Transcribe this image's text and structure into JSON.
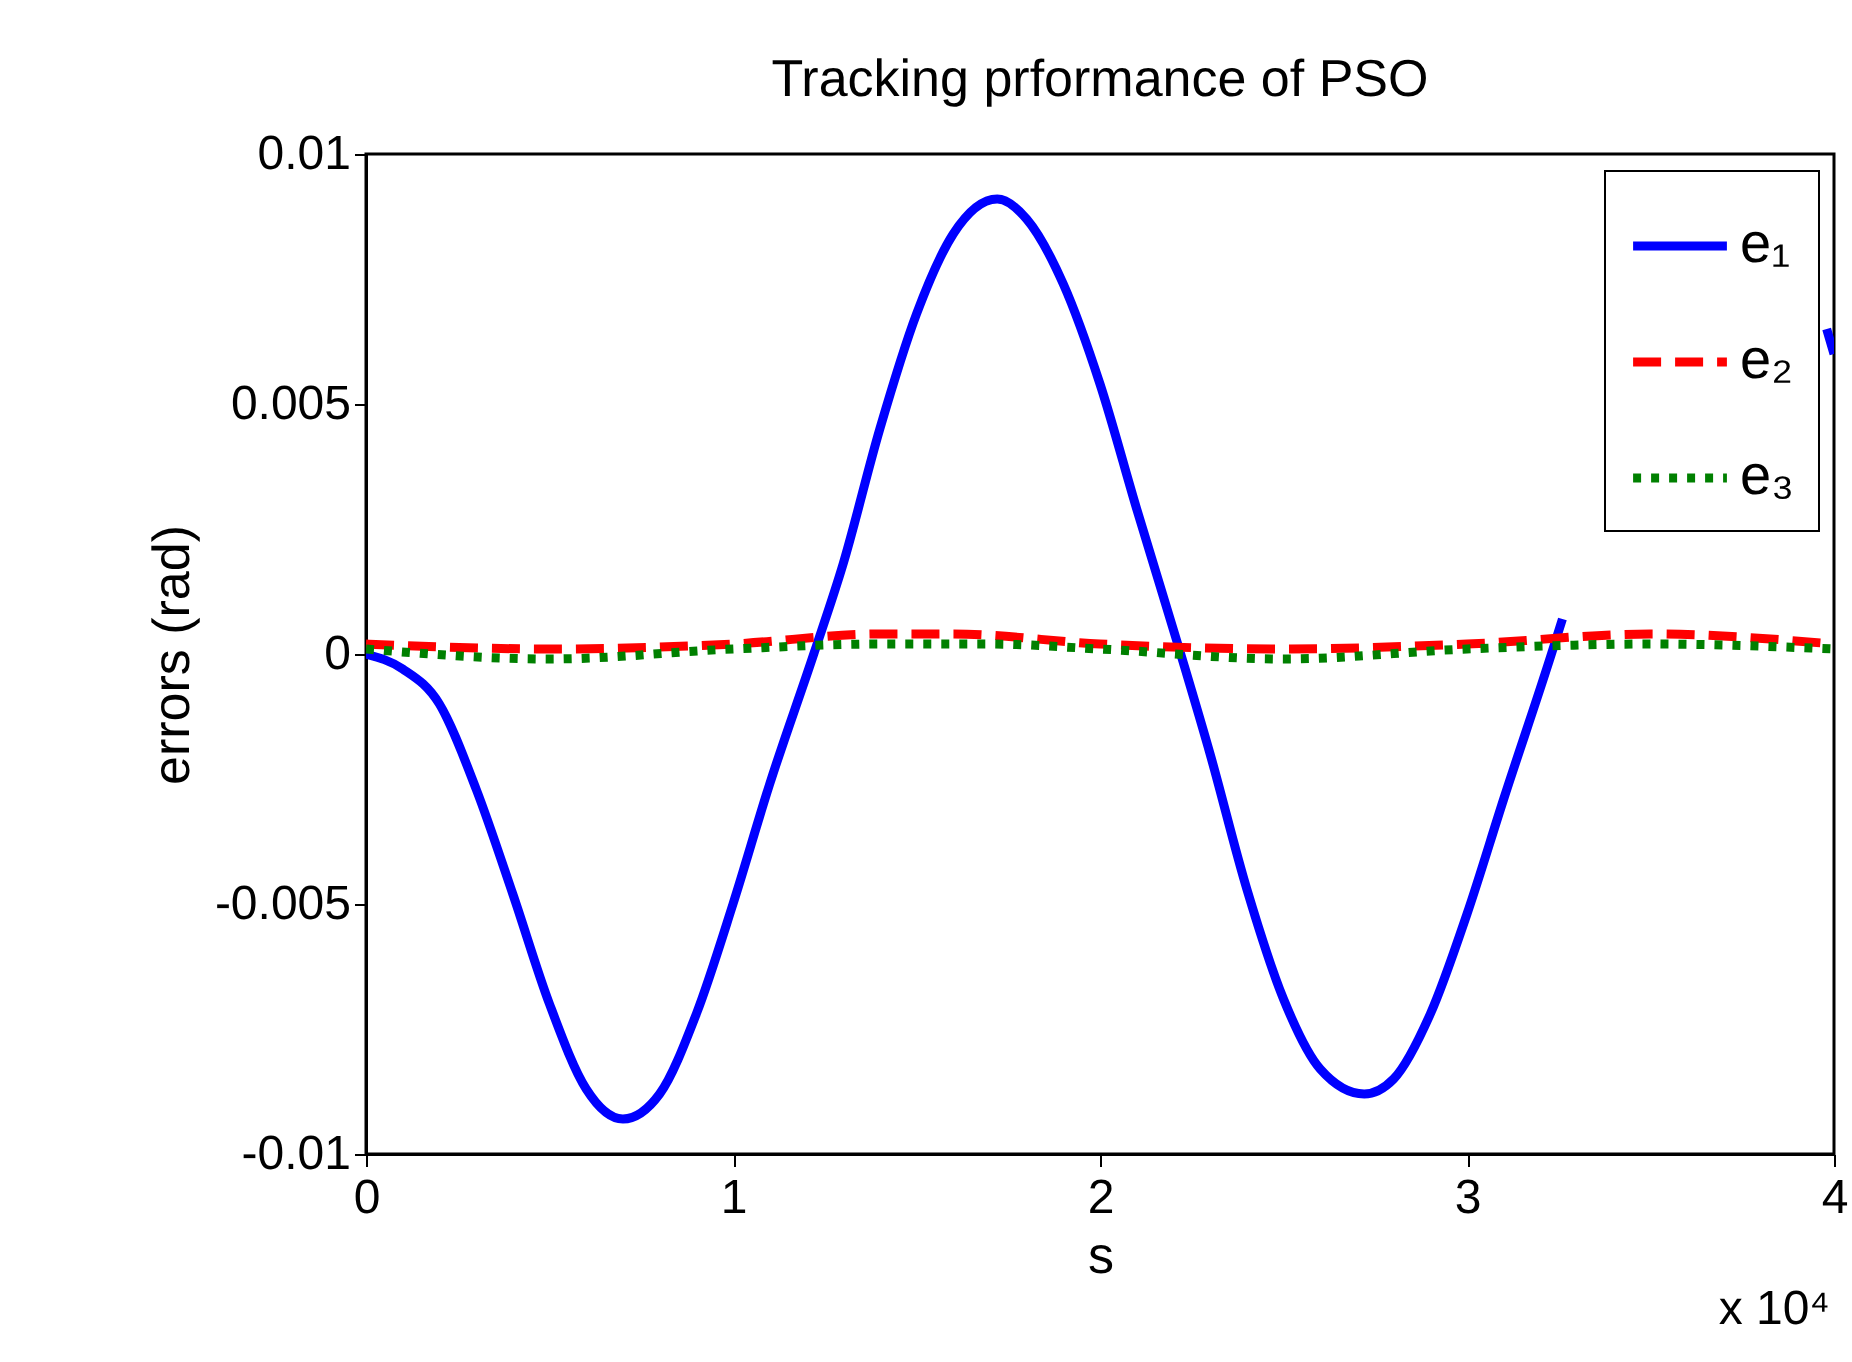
{
  "chart_data": {
    "type": "line",
    "title": "Tracking prformance of PSO",
    "xlabel": "s",
    "ylabel": "errors (rad)",
    "annotations": [
      "x 10⁴"
    ],
    "xlim": [
      0,
      4
    ],
    "xticks": [
      0,
      1,
      2,
      3,
      4
    ],
    "ylim": [
      -0.01,
      0.01
    ],
    "yticks": [
      -0.01,
      -0.005,
      0,
      0.005,
      0.01
    ],
    "grid": false,
    "legend": "top right",
    "series": [
      {
        "name": "e₁",
        "color": "#0000ff",
        "line_style": "solid",
        "x": [
          0,
          0.1,
          0.2,
          0.3,
          0.4,
          0.5,
          0.6,
          0.7,
          0.8,
          0.9,
          1,
          1.1,
          1.22,
          1.3,
          1.4,
          1.5,
          1.6,
          1.72,
          1.8,
          1.9,
          2,
          2.1,
          2.22,
          2.3,
          2.4,
          2.5,
          2.6,
          2.72,
          2.8,
          2.9,
          3,
          3.1,
          3.23,
          3.26,
          3.4,
          3.6,
          3.8,
          3.98,
          4
        ],
        "values": [
          0,
          -0.0003,
          -0.001,
          -0.0027,
          -0.0048,
          -0.007,
          -0.0087,
          -0.0093,
          -0.0088,
          -0.0072,
          -0.005,
          -0.0026,
          0,
          0.0018,
          0.0045,
          0.0068,
          0.0084,
          0.0091,
          0.0087,
          0.0074,
          0.0054,
          0.0029,
          0,
          -0.002,
          -0.0047,
          -0.0069,
          -0.0083,
          -0.0088,
          -0.0085,
          -0.0072,
          -0.0052,
          -0.0029,
          0,
          0.0007,
          null,
          null,
          null,
          0.0065,
          0.006
        ]
      },
      {
        "name": "e₂",
        "color": "#ff0000",
        "line_style": "dashed",
        "x": [
          0,
          0.5,
          1,
          1.4,
          1.6,
          2,
          2.5,
          3,
          3.5,
          4
        ],
        "values": [
          0.0002,
          0.0001,
          0.0002,
          0.0004,
          0.0004,
          0.0002,
          0.0001,
          0.0002,
          0.0004,
          0.0002
        ]
      },
      {
        "name": "e₃",
        "color": "#008000",
        "line_style": "dotted",
        "x": [
          0,
          0.5,
          1,
          1.4,
          1.7,
          2,
          2.5,
          3,
          3.5,
          4
        ],
        "values": [
          0.0001,
          -0.0001,
          0.0001,
          0.0002,
          0.0002,
          0.0001,
          -0.0001,
          0.0001,
          0.0002,
          0.0001
        ]
      }
    ]
  }
}
